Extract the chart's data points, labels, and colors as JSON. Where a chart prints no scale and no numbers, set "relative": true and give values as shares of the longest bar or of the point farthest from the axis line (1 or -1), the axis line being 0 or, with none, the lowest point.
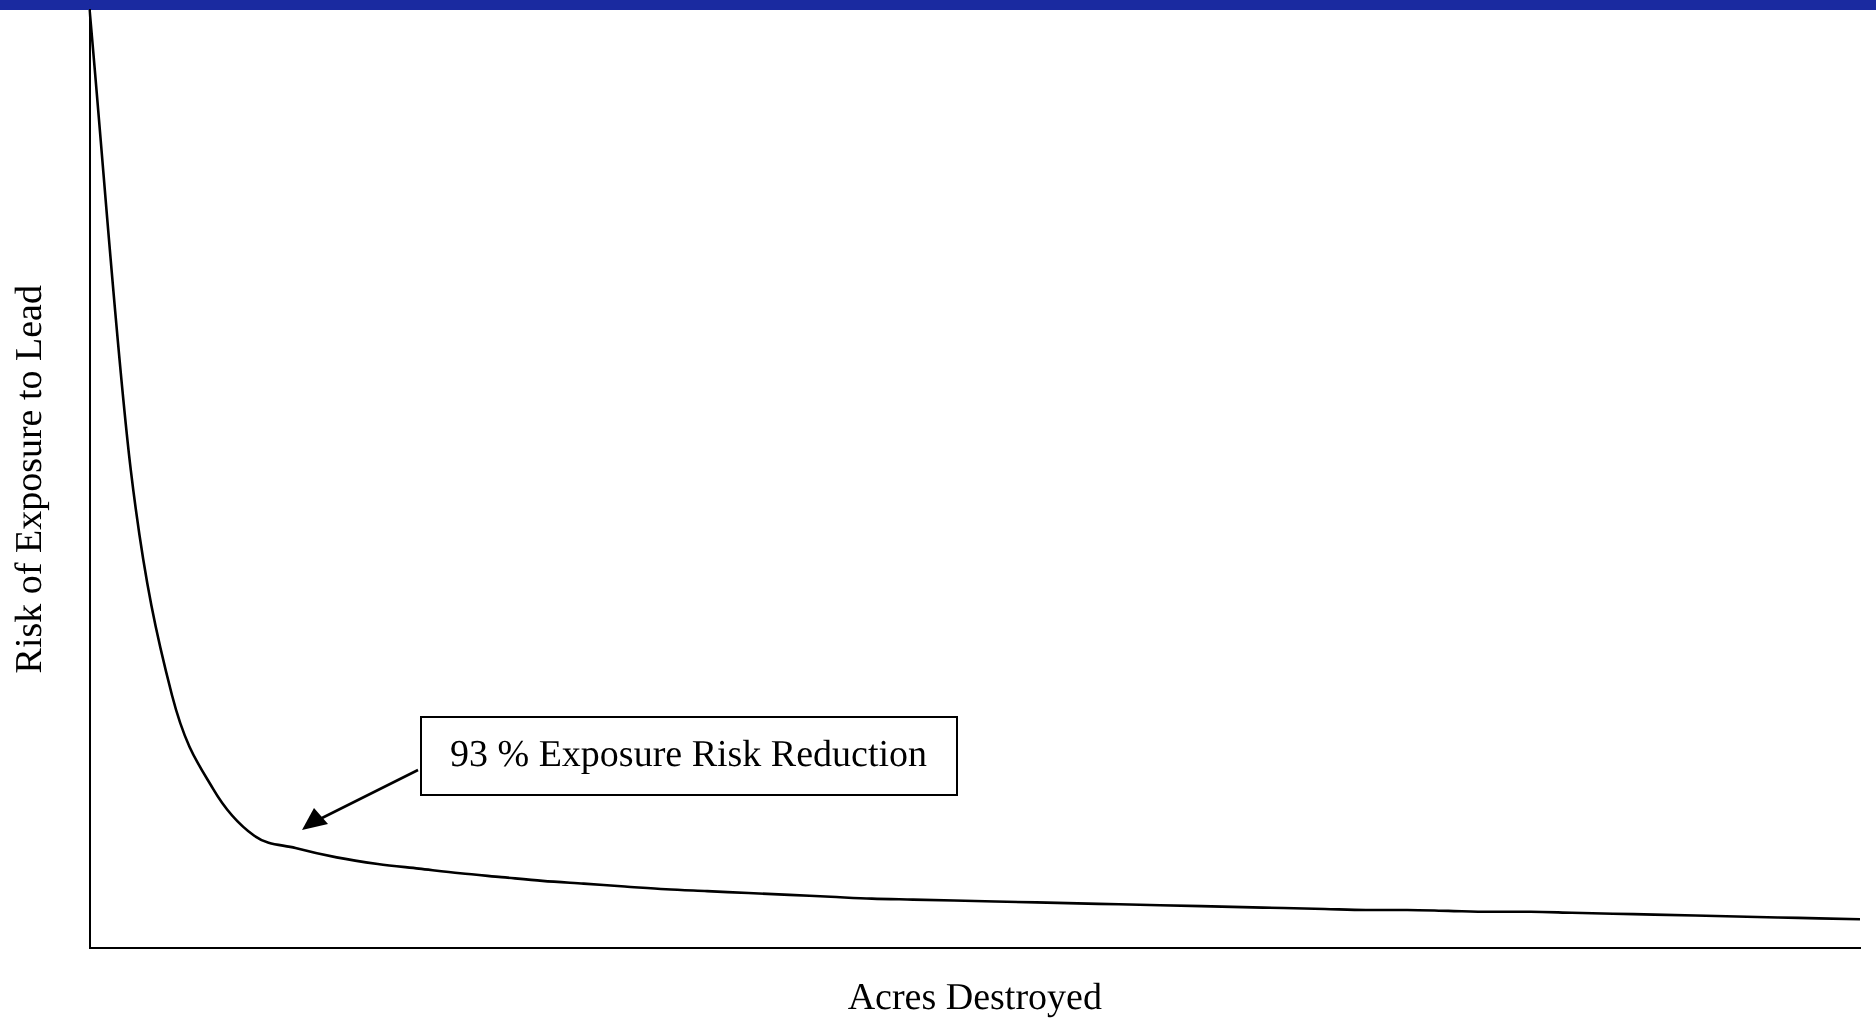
{
  "chart_data": {
    "type": "line",
    "relative": true,
    "xlabel": "Acres Destroyed",
    "ylabel": "Risk of Exposure to Lead",
    "color": "#000000",
    "marker": "none",
    "grid": false,
    "legend": false,
    "categories": [
      null,
      null,
      null,
      null,
      null,
      null,
      null,
      null,
      null,
      null,
      null,
      null,
      null,
      null,
      null,
      null,
      null,
      null,
      null,
      null,
      null,
      null,
      null,
      null,
      null,
      null,
      null,
      null,
      null,
      null,
      null,
      null,
      null,
      null,
      null,
      null,
      null,
      null,
      null,
      null,
      null,
      null,
      null,
      null
    ],
    "values": [
      1.0,
      0.51,
      0.27,
      0.17,
      0.12,
      0.107,
      0.097,
      0.09,
      0.085,
      0.08,
      0.076,
      0.072,
      0.069,
      0.066,
      0.063,
      0.061,
      0.059,
      0.057,
      0.055,
      0.053,
      0.052,
      0.051,
      0.05,
      0.049,
      0.048,
      0.047,
      0.046,
      0.045,
      0.044,
      0.043,
      0.042,
      0.041,
      0.041,
      0.04,
      0.039,
      0.039,
      0.038,
      0.037,
      0.036,
      0.035,
      0.034,
      0.033,
      0.032,
      0.031
    ],
    "annotations": [
      "93 % Exposure Risk Reduction"
    ]
  }
}
